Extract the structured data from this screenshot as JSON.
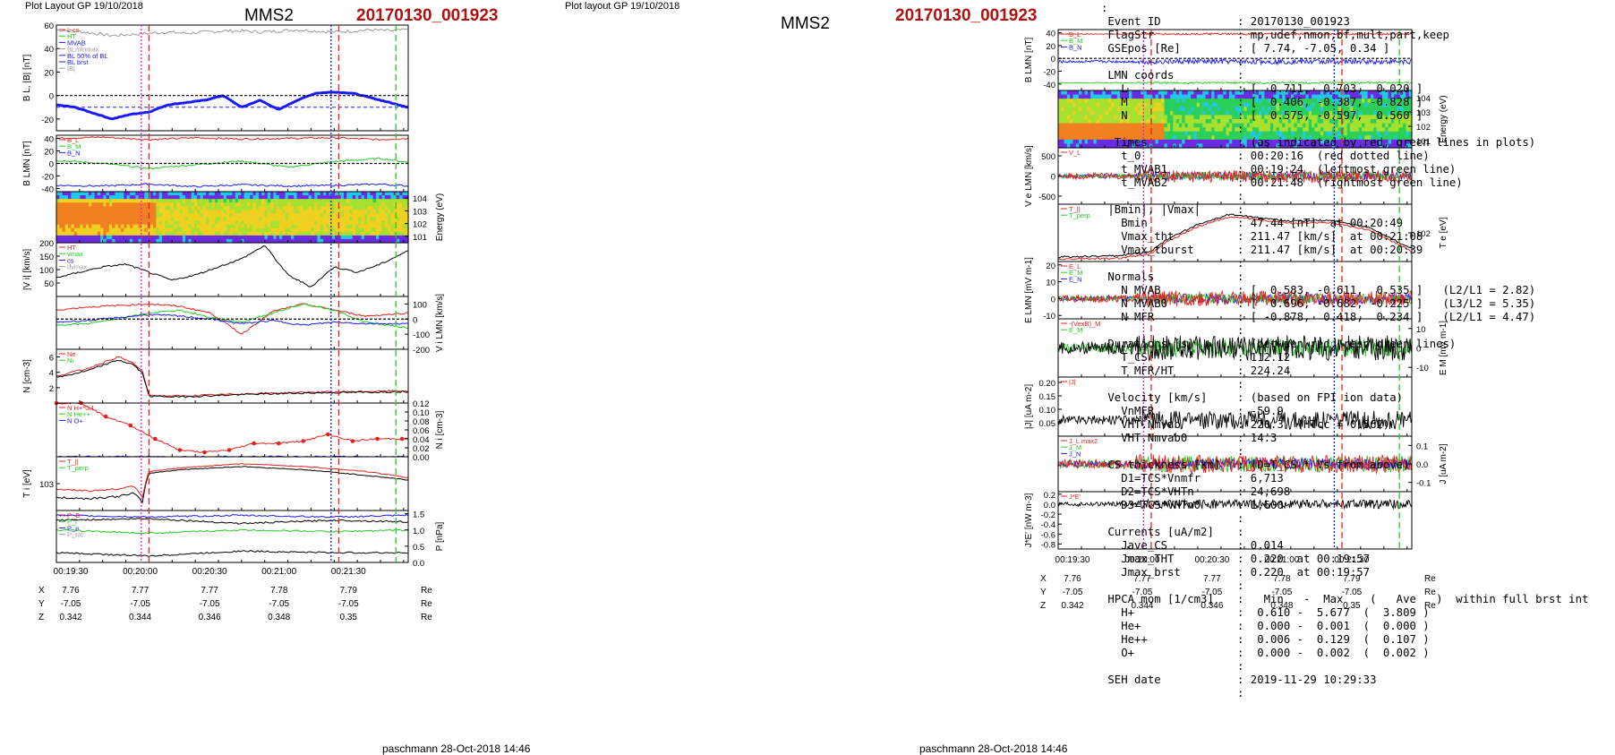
{
  "headers": {
    "layout_left": "Plot Layout GP 19/10/2018",
    "layout_right": "Plot layout GP 19/10/2018",
    "spacecraft": "MMS2",
    "event": "20170130_001923",
    "footer": "paschmann 28-Oct-2018 14:46"
  },
  "time_ticks": [
    "00:19:30",
    "00:20:00",
    "00:20:30",
    "00:21:00",
    "00:21:30"
  ],
  "position_table": {
    "rows": [
      {
        "label": "X",
        "values": [
          "7.76",
          "7.77",
          "7.77",
          "7.78",
          "7.79"
        ],
        "unit": "Re"
      },
      {
        "label": "Y",
        "values": [
          "-7.05",
          "-7.05",
          "-7.05",
          "-7.05",
          "-7.05"
        ],
        "unit": "Re"
      },
      {
        "label": "Z",
        "values": [
          "0.342",
          "0.344",
          "0.346",
          "0.348",
          "0.35"
        ],
        "unit": "Re"
      }
    ]
  },
  "colors": {
    "red": "#e8201c",
    "green": "#22cc22",
    "blue": "#1a1aff",
    "black": "#000000",
    "magenta": "#e020e0",
    "grey": "#9a9a9a",
    "event_red": "#b01010"
  },
  "chart_data": [
    {
      "type": "line",
      "panel": "left-1",
      "ylabel": "B_L, |B| [nT]",
      "ylim": [
        -30,
        60
      ],
      "yticks": [
        "-20",
        "0",
        "20",
        "40",
        "60"
      ],
      "legend": [
        "L cs",
        "HT",
        "MVAB",
        "BLminmax",
        "BL 50% of BL",
        "BL brst",
        "|B|"
      ],
      "series": [
        {
          "name": "|B|",
          "x": [
            0,
            12,
            24,
            36,
            48,
            60,
            72,
            84,
            96,
            108,
            120,
            132,
            144,
            156,
            168,
            180,
            192,
            204,
            216,
            228
          ],
          "values": [
            56,
            55,
            53,
            51,
            52,
            53,
            54,
            53,
            54,
            55,
            55,
            54,
            55,
            56,
            55,
            54,
            55,
            56,
            55,
            56
          ]
        },
        {
          "name": "BL brst",
          "x": [
            0,
            12,
            24,
            36,
            48,
            60,
            72,
            84,
            96,
            108,
            120,
            132,
            144,
            156,
            168,
            180,
            192,
            204,
            216,
            228
          ],
          "values": [
            -8,
            -10,
            -15,
            -20,
            -16,
            -14,
            -8,
            -6,
            -4,
            0,
            -10,
            -4,
            -12,
            -4,
            2,
            3,
            2,
            -2,
            -6,
            -10
          ]
        }
      ],
      "reference_lines": {
        "dashed_black": 0,
        "dashed_blue": -10
      }
    },
    {
      "type": "line",
      "panel": "left-2",
      "ylabel": "B_LMN [nT]",
      "ylim": [
        -45,
        45
      ],
      "yticks": [
        "-40",
        "-20",
        "0",
        "20",
        "40"
      ],
      "legend": [
        "B_L",
        "B_M",
        "B_N"
      ],
      "series": [
        {
          "name": "B_L",
          "x": [
            0,
            30,
            60,
            90,
            120,
            150,
            180,
            210,
            228
          ],
          "values": [
            40,
            42,
            38,
            41,
            39,
            40,
            41,
            38,
            40
          ]
        },
        {
          "name": "B_M",
          "x": [
            0,
            30,
            60,
            90,
            120,
            150,
            180,
            210,
            228
          ],
          "values": [
            5,
            0,
            -8,
            -2,
            4,
            -6,
            3,
            8,
            2
          ]
        },
        {
          "name": "B_N",
          "x": [
            0,
            30,
            60,
            90,
            120,
            150,
            180,
            210,
            228
          ],
          "values": [
            -35,
            -36,
            -33,
            -37,
            -34,
            -36,
            -35,
            -33,
            -36
          ]
        }
      ]
    },
    {
      "type": "heatmap",
      "panel": "left-3",
      "ylabel": "Energy (eV)",
      "yticks": [
        "10^4",
        "10^3",
        "10^2",
        "10^1"
      ]
    },
    {
      "type": "line",
      "panel": "left-4",
      "ylabel": "|V_i| [km/s]",
      "ylim": [
        0,
        200
      ],
      "yticks": [
        "50",
        "100",
        "150",
        "200"
      ],
      "legend": [
        "HT",
        "vmax",
        "cs",
        "dvmax"
      ],
      "series": [
        {
          "name": "|V_i|",
          "x": [
            0,
            15,
            30,
            45,
            60,
            75,
            90,
            105,
            120,
            135,
            150,
            165,
            180,
            195,
            210,
            228
          ],
          "values": [
            70,
            90,
            110,
            120,
            90,
            60,
            80,
            110,
            140,
            190,
            80,
            35,
            110,
            90,
            120,
            170
          ]
        }
      ]
    },
    {
      "type": "line",
      "panel": "left-5",
      "ylabel": "V_i LMN [km/s]",
      "ylim": [
        -200,
        150
      ],
      "yticks": [
        "100",
        "0",
        "-100",
        "-200"
      ],
      "series": [
        {
          "name": "V_L",
          "x": [
            0,
            20,
            40,
            60,
            80,
            100,
            120,
            140,
            160,
            180,
            200,
            228
          ],
          "values": [
            60,
            80,
            90,
            100,
            85,
            40,
            -100,
            50,
            100,
            60,
            20,
            40
          ]
        },
        {
          "name": "V_M",
          "x": [
            0,
            20,
            40,
            60,
            80,
            100,
            120,
            140,
            160,
            180,
            200,
            228
          ],
          "values": [
            -40,
            -30,
            0,
            40,
            60,
            10,
            -20,
            40,
            100,
            60,
            -20,
            -60
          ]
        },
        {
          "name": "V_N",
          "x": [
            0,
            20,
            40,
            60,
            80,
            100,
            120,
            140,
            160,
            180,
            200,
            228
          ],
          "values": [
            -20,
            -10,
            10,
            30,
            20,
            0,
            -30,
            -10,
            -40,
            -20,
            -30,
            -30
          ]
        }
      ]
    },
    {
      "type": "line",
      "panel": "left-6",
      "ylabel": "N [cm^-3]",
      "ylim": [
        0,
        7
      ],
      "yticks": [
        "2",
        "4",
        "6"
      ],
      "legend": [
        "Ne",
        "Ni"
      ],
      "series": [
        {
          "name": "Ne",
          "x": [
            0,
            20,
            40,
            50,
            56,
            60,
            80,
            120,
            160,
            200,
            228
          ],
          "values": [
            3.5,
            4.5,
            6.0,
            5.2,
            4.0,
            1.0,
            0.9,
            1.2,
            1.4,
            1.5,
            1.6
          ]
        },
        {
          "name": "Ni",
          "x": [
            0,
            20,
            40,
            50,
            56,
            60,
            80,
            120,
            160,
            200,
            228
          ],
          "values": [
            3.3,
            4.2,
            5.6,
            5.0,
            3.8,
            0.9,
            0.8,
            1.1,
            1.3,
            1.4,
            1.5
          ]
        }
      ]
    },
    {
      "type": "line",
      "panel": "left-7",
      "ylabel": "N_i [cm^-3]",
      "ylim": [
        0,
        0.12
      ],
      "yticks": [
        "0.00",
        "0.02",
        "0.04",
        "0.06",
        "0.08",
        "0.10",
        "0.12"
      ],
      "legend": [
        "N H+*0.1",
        "N He++",
        "N O+"
      ],
      "series": [
        {
          "name": "N He++",
          "x": [
            0,
            16,
            32,
            48,
            64,
            80,
            96,
            112,
            128,
            144,
            160,
            176,
            192,
            208,
            224
          ],
          "values": [
            0.12,
            0.12,
            0.09,
            0.07,
            0.04,
            0.015,
            0.01,
            0.015,
            0.03,
            0.03,
            0.035,
            0.05,
            0.035,
            0.04,
            0.04
          ]
        },
        {
          "name": "N O+",
          "x": [
            0,
            32,
            64,
            96,
            128,
            160,
            192,
            224
          ],
          "values": [
            0.0,
            0.0,
            0.0,
            0.0,
            0.0,
            0.0,
            0.0,
            0.0
          ]
        }
      ]
    },
    {
      "type": "line",
      "panel": "left-8",
      "ylabel": "T_i [eV]",
      "yticks": [
        "10^3"
      ],
      "legend": [
        "T_||",
        "T_perp"
      ],
      "series": [
        {
          "name": "T",
          "x": [
            0,
            20,
            40,
            50,
            56,
            60,
            80,
            120,
            160,
            200,
            228
          ],
          "values": [
            500,
            480,
            520,
            600,
            400,
            1300,
            1500,
            1700,
            1500,
            1200,
            1000
          ]
        },
        {
          "name": "T_||",
          "x": [
            0,
            20,
            40,
            50,
            56,
            60,
            80,
            120,
            160,
            200,
            228
          ],
          "values": [
            700,
            650,
            700,
            800,
            500,
            1400,
            1600,
            1900,
            1700,
            1400,
            1100
          ]
        }
      ]
    },
    {
      "type": "line",
      "panel": "left-9",
      "ylabel": "P [nPa]",
      "ylim": [
        0,
        1.6
      ],
      "yticks": [
        "0.0",
        "0.5",
        "1.0",
        "1.5"
      ],
      "legend": [
        "P_B",
        "P_i",
        "P_e",
        "P_tot"
      ],
      "series": [
        {
          "name": "P_tot",
          "x": [
            0,
            60,
            120,
            180,
            228
          ],
          "values": [
            1.45,
            1.4,
            1.45,
            1.4,
            1.45
          ]
        },
        {
          "name": "P_B",
          "x": [
            0,
            60,
            120,
            180,
            228
          ],
          "values": [
            1.3,
            1.35,
            1.2,
            1.3,
            1.25
          ]
        },
        {
          "name": "P_i",
          "x": [
            0,
            60,
            120,
            180,
            228
          ],
          "values": [
            1.0,
            0.9,
            1.0,
            0.95,
            1.0
          ]
        },
        {
          "name": "P_e",
          "x": [
            0,
            60,
            120,
            180,
            228
          ],
          "values": [
            0.3,
            0.2,
            0.35,
            0.3,
            0.3
          ]
        }
      ]
    },
    {
      "type": "line",
      "panel": "right-1",
      "ylabel": "B_LMN [nT]",
      "ylim": [
        -50,
        45
      ],
      "yticks": [
        "40",
        "20",
        "0",
        "-20",
        "-40"
      ],
      "legend": [
        "B_L",
        "B_M",
        "B_N"
      ]
    },
    {
      "type": "heatmap",
      "panel": "right-2",
      "ylabel": "Energy (eV)",
      "yticks": [
        "10^4",
        "10^3",
        "10^2",
        "10^1"
      ]
    },
    {
      "type": "line",
      "panel": "right-3",
      "ylabel": "V_e LMN [km/s]",
      "ylim": [
        -700,
        700
      ],
      "yticks": [
        "500",
        "0",
        "-500"
      ],
      "legend": [
        "V_L"
      ]
    },
    {
      "type": "line",
      "panel": "right-4",
      "ylabel": "T_e [eV]",
      "yticks": [
        "10^2"
      ],
      "legend": [
        "T_||",
        "T_perp"
      ]
    },
    {
      "type": "line",
      "panel": "right-5",
      "ylabel": "E_LMN [mV m^-1]",
      "ylim": [
        -12,
        22
      ],
      "yticks": [
        "20",
        "10",
        "0",
        "-10"
      ],
      "legend": [
        "E_L",
        "E_M",
        "E_N"
      ]
    },
    {
      "type": "line",
      "panel": "right-6",
      "ylabel": "E_M [mV m^-1]",
      "ylim": [
        -15,
        15
      ],
      "yticks": [
        "10",
        "0",
        "-10"
      ],
      "legend": [
        "-(VexB)_M",
        "E_M"
      ]
    },
    {
      "type": "line",
      "panel": "right-7",
      "ylabel": "|J| [uA m^-2]",
      "ylim": [
        0,
        0.22
      ],
      "yticks": [
        "0.20",
        "0.15",
        "0.10",
        "0.05"
      ],
      "legend": [
        "|J|"
      ]
    },
    {
      "type": "line",
      "panel": "right-8",
      "ylabel": "J [uA m^-2]",
      "ylim": [
        -0.15,
        0.15
      ],
      "yticks": [
        "0.1",
        "0.0",
        "-0.1"
      ],
      "legend": [
        "J_L max2",
        "J_M",
        "J_N"
      ]
    },
    {
      "type": "line",
      "panel": "right-9",
      "ylabel": "J*E' [nW m^-3]",
      "ylim": [
        -0.9,
        0.25
      ],
      "yticks": [
        "0.2",
        "0.0",
        "-0.2",
        "-0.4",
        "-0.6",
        "-0.8"
      ],
      "legend": [
        "J*E'"
      ]
    }
  ],
  "info": {
    "event_id": [
      "Event ID",
      ": 20170130_001923"
    ],
    "flagstr": [
      "FlagStr",
      ": mp,udef,nmon,bf,mult,part,keep"
    ],
    "gsepos": [
      "GSEpos [Re]",
      ": [ 7.74, -7.05, 0.34 ]"
    ],
    "lmn_title": "LMN coords",
    "lmn": [
      [
        "  L",
        ": [  0.711,  0.703,  0.020 ]"
      ],
      [
        "  M",
        ": [  0.406, -0.387, -0.828 ]"
      ],
      [
        "  N",
        ": [  0.575, -0.597,  0.560 ]"
      ]
    ],
    "times_title": [
      " Times",
      ": (as indicated by red, green lines in plots)"
    ],
    "times": [
      [
        "  t_0",
        ": 00:20:16  (red dotted line)"
      ],
      [
        "  t_MVAB1",
        ": 00:19:24  (leftmost green line)"
      ],
      [
        "  t_MVAB2",
        ": 00:21:48  (rightmost green line)"
      ]
    ],
    "bmin_title": "|Bmin|, |Vmax|",
    "bmin": [
      [
        "  Bmin",
        ": 47.44 [nT]  at 00:20:49"
      ],
      [
        "  Vmax_tht",
        ": 211.47 [km/s]  at 00:21:08"
      ],
      [
        "  Vmax_tburst",
        ": 211.47 [km/s]  at 00:20:39"
      ]
    ],
    "normals_title": "Normals",
    "normals": [
      [
        "  N MVAB",
        ": [  0.583, -0.611,  0.535 ]   (L2/L1 = 2.82)"
      ],
      [
        "  N MVAB0",
        ": [  0.696, -0.682, -0.225 ]   (L3/L2 = 5.35)"
      ],
      [
        "  N MFR",
        ": [ -0.878,  0.418,  0.234 ]   (L2/L1 = 4.47)"
      ]
    ],
    "durations_title": [
      "Durations [s]",
      ": (between red, resp green lines)"
    ],
    "durations": [
      [
        "  T_CS",
        ": 112.12"
      ],
      [
        "  T_MFR/HT",
        ": 224.24"
      ]
    ],
    "velocity_title": [
      "Velocity [km/s]",
      ": (based on FPI ion data)"
    ],
    "velocity": [
      [
        "  VnMFR",
        ": -59.9"
      ],
      [
        "  VHT.Nmvab",
        ": 220.3  (HTcc = 0.562)"
      ],
      [
        "  VHT.Nmvab0",
        ": 14.3"
      ]
    ],
    "cs_title": [
      "CS thickness [km]",
      ": (D=T_CS * Vs from above)"
    ],
    "cs": [
      [
        "  D1=TCS*Vnmfr",
        ": 6,713"
      ],
      [
        "  D2=TCS*VHTn",
        ": 24,698"
      ],
      [
        "  D3=TCS*VHTn0",
        ": 1,600"
      ]
    ],
    "currents_title": "Currents [uA/m2]",
    "currents": [
      [
        "  Jave_CS",
        ": 0.014"
      ],
      [
        "  Jmax_THT",
        ": 0.220  at 00:19:57"
      ],
      [
        "  Jmax_brst",
        ": 0.220  at 00:19:57"
      ]
    ],
    "hpca_title": [
      "HPCA mom [1/cm3]",
      ":   Min   -  Max    (   Ave   )  within full brst int"
    ],
    "hpca": [
      [
        "  H+",
        ":  0.610 -  5.677  (  3.809 )"
      ],
      [
        "  He+",
        ":  0.000 -  0.001  (  0.000 )"
      ],
      [
        "  He++",
        ":  0.006 -  0.129  (  0.107 )"
      ],
      [
        "  O+",
        ":  0.000 -  0.002  (  0.002 )"
      ]
    ],
    "seh": [
      "SEH date",
      ": 2019-11-29 10:29:33"
    ]
  }
}
